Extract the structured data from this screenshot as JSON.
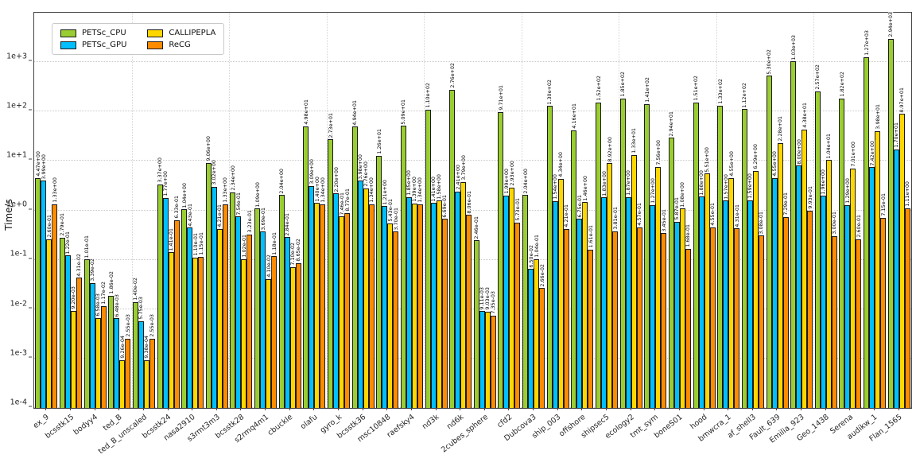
{
  "chart_data": {
    "type": "bar",
    "log_y": true,
    "ylabel": "Time/s",
    "ylim": [
      "1e-4",
      "1e+4"
    ],
    "grid": true,
    "legend_position": "upper left",
    "yticks": [
      {
        "label": "1e+3",
        "exp": 3
      },
      {
        "label": "1e+2",
        "exp": 2
      },
      {
        "label": "1e+1",
        "exp": 1
      },
      {
        "label": "1e+0",
        "exp": 0
      },
      {
        "label": "1e-1",
        "exp": -1
      },
      {
        "label": "1e-2",
        "exp": -2
      },
      {
        "label": "1e-3",
        "exp": -3
      },
      {
        "label": "1e-4",
        "exp": -4
      }
    ],
    "categories": [
      "ex_9",
      "bcsstk15",
      "bodyy4",
      "ted_B",
      "ted_B_unscaled",
      "bcsstk24",
      "nasa2910",
      "s3rmt3m3",
      "bcsstk28",
      "s2rmq4m1",
      "cbuckle",
      "olafu",
      "gyro_k",
      "bcsstk36",
      "msc10848",
      "raefsky4",
      "nd3k",
      "nd6k",
      "2cubes_sphere",
      "cfd2",
      "Dubcova3",
      "ship_003",
      "offshore",
      "shipsec5",
      "ecology2",
      "tmt_sym",
      "boneS01",
      "hood",
      "bmwcra_1",
      "af_shell3",
      "Fault_639",
      "Emilia_923",
      "Geo_1438",
      "Serena",
      "audikw_1",
      "Flan_1565"
    ],
    "series": [
      {
        "name": "PETSc_CPU",
        "color": "#9acd32",
        "values": [
          "4.47e+00",
          "2.79e-01",
          "1.01e-01",
          "1.86e-02",
          "1.40e-02",
          "3.37e+00",
          "1.04e+00",
          "9.06e+00",
          "2.34e+00",
          "1.09e+00",
          "2.04e+00",
          "4.98e+01",
          "2.73e+01",
          "4.94e+01",
          "1.26e+01",
          "5.09e+01",
          "1.10e+02",
          "2.76e+02",
          "2.46e-01",
          "9.71e+01",
          "2.04e+00",
          "1.30e+02",
          "4.16e+01",
          "1.52e+02",
          "1.85e+02",
          "1.41e+02",
          "2.94e+01",
          "1.51e+02",
          "1.33e+02",
          "1.12e+02",
          "5.30e+02",
          "1.03e+03",
          "2.57e+02",
          "1.82e+02",
          "1.27e+03",
          "2.94e+03"
        ]
      },
      {
        "name": "PETSc_GPU",
        "color": "#00bfff",
        "values": [
          "3.99e+00",
          "1.22e-01",
          "3.39e-02",
          "6.48e-03",
          "5.75e-03",
          "1.77e+00",
          "4.43e-01",
          "3.02e+00",
          "7.54e-01",
          "3.69e-01",
          "2.84e-01",
          "3.09e+00",
          "2.20e+00",
          "3.98e+00",
          "1.21e+00",
          "1.85e+00",
          "1.41e+00",
          "2.41e+00",
          "9.11e-03",
          "1.99e+00",
          "6.50e-02",
          "1.54e+00",
          "6.75e-01",
          "1.83e+00",
          "1.87e+00",
          "1.27e+00",
          "5.87e-01",
          "1.88e+00",
          "1.57e+00",
          "1.59e+00",
          "4.55e+00",
          "8.00e+00",
          "1.96e+00",
          "1.29e+00",
          "7.42e+00",
          "1.70e+01"
        ]
      },
      {
        "name": "CALLIPEPLA",
        "color": "#ffd700",
        "values": [
          "2.60e-01",
          "9.20e-03",
          "6.58e-03",
          "9.26e-04",
          "9.38e-04",
          "1.41e-01",
          "1.10e-01",
          "4.21e-01",
          "1.02e-01",
          "4.10e-02",
          "7.10e-02",
          "1.40e+00",
          "7.46e-01",
          "2.76e+00",
          "5.43e-01",
          "1.39e+00",
          "1.58e+00",
          "3.79e+00",
          "9.03e-03",
          "2.93e+00",
          "1.04e-01",
          "4.34e+00",
          "1.46e+00",
          "8.92e+00",
          "1.33e+01",
          "7.56e+00",
          "1.08e+00",
          "5.51e+00",
          "4.55e+00",
          "6.29e+00",
          "2.28e+01",
          "4.38e+01",
          "1.04e+01",
          "7.01e+00",
          "3.98e+01",
          "8.97e+01"
        ]
      },
      {
        "name": "ReCG",
        "color": "#ff8c00",
        "values": [
          "1.33e+00",
          "4.31e-02",
          "1.17e-02",
          "2.55e-03",
          "2.55e-03",
          "6.33e-01",
          "1.15e-01",
          "1.33e+00",
          "3.23e-01",
          "1.18e-01",
          "8.65e-02",
          "1.34e+00",
          "8.77e-01",
          "1.34e+00",
          "3.70e-01",
          "1.34e+00",
          "6.69e-01",
          "8.06e-01",
          "7.35e-03",
          "5.73e-01",
          "2.66e-02",
          "4.21e-01",
          "1.61e-01",
          "3.81e-01",
          "4.57e-01",
          "3.45e-01",
          "1.68e-01",
          "4.55e-01",
          "4.31e-01",
          "3.08e-01",
          "7.29e-01",
          "9.93e-01",
          "3.00e-01",
          "2.60e-01",
          "7.15e-01",
          "1.11e+00"
        ]
      }
    ]
  }
}
